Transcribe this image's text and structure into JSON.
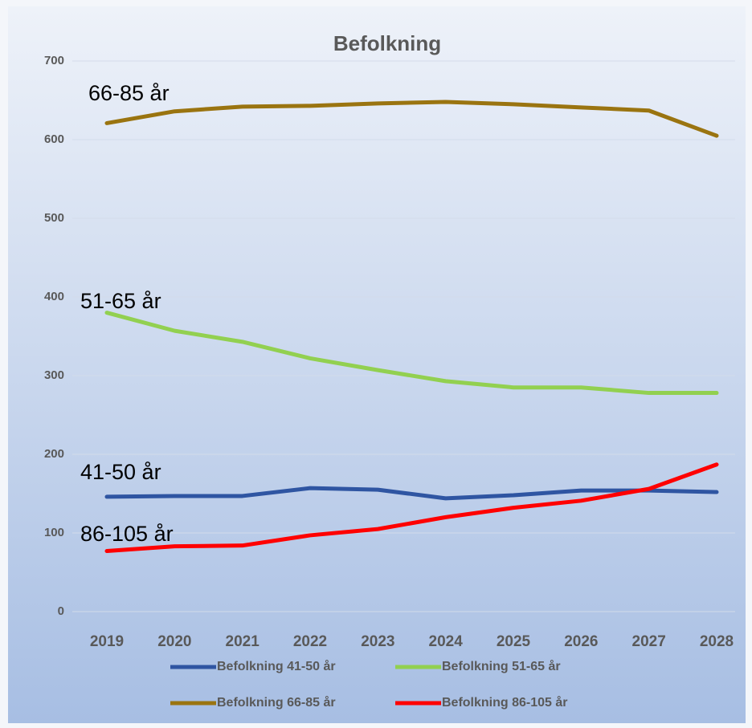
{
  "chart_data": {
    "type": "line",
    "title": "Befolkning",
    "categories": [
      "2019",
      "2020",
      "2021",
      "2022",
      "2023",
      "2024",
      "2025",
      "2026",
      "2027",
      "2028"
    ],
    "series": [
      {
        "name": "Befolkning 41-50 år",
        "color": "#2f55a2",
        "values": [
          146,
          147,
          147,
          157,
          155,
          144,
          148,
          154,
          154,
          152
        ]
      },
      {
        "name": "Befolkning 51-65 år",
        "color": "#92d050",
        "values": [
          380,
          357,
          343,
          322,
          307,
          293,
          285,
          285,
          278,
          278
        ]
      },
      {
        "name": "Befolkning 66-85 år",
        "color": "#9a7410",
        "values": [
          621,
          636,
          642,
          643,
          646,
          648,
          645,
          641,
          637,
          605
        ]
      },
      {
        "name": "Befolkning 86-105 år",
        "color": "#ff0000",
        "values": [
          77,
          83,
          84,
          97,
          105,
          120,
          132,
          141,
          156,
          187
        ]
      }
    ],
    "annotations": [
      "41-50 år",
      "51-65 år",
      "66-85 år",
      "86-105 år"
    ],
    "ylim": [
      0,
      700
    ],
    "yticks": [
      0,
      100,
      200,
      300,
      400,
      500,
      600,
      700
    ],
    "grid": true,
    "legend": "bottom"
  }
}
